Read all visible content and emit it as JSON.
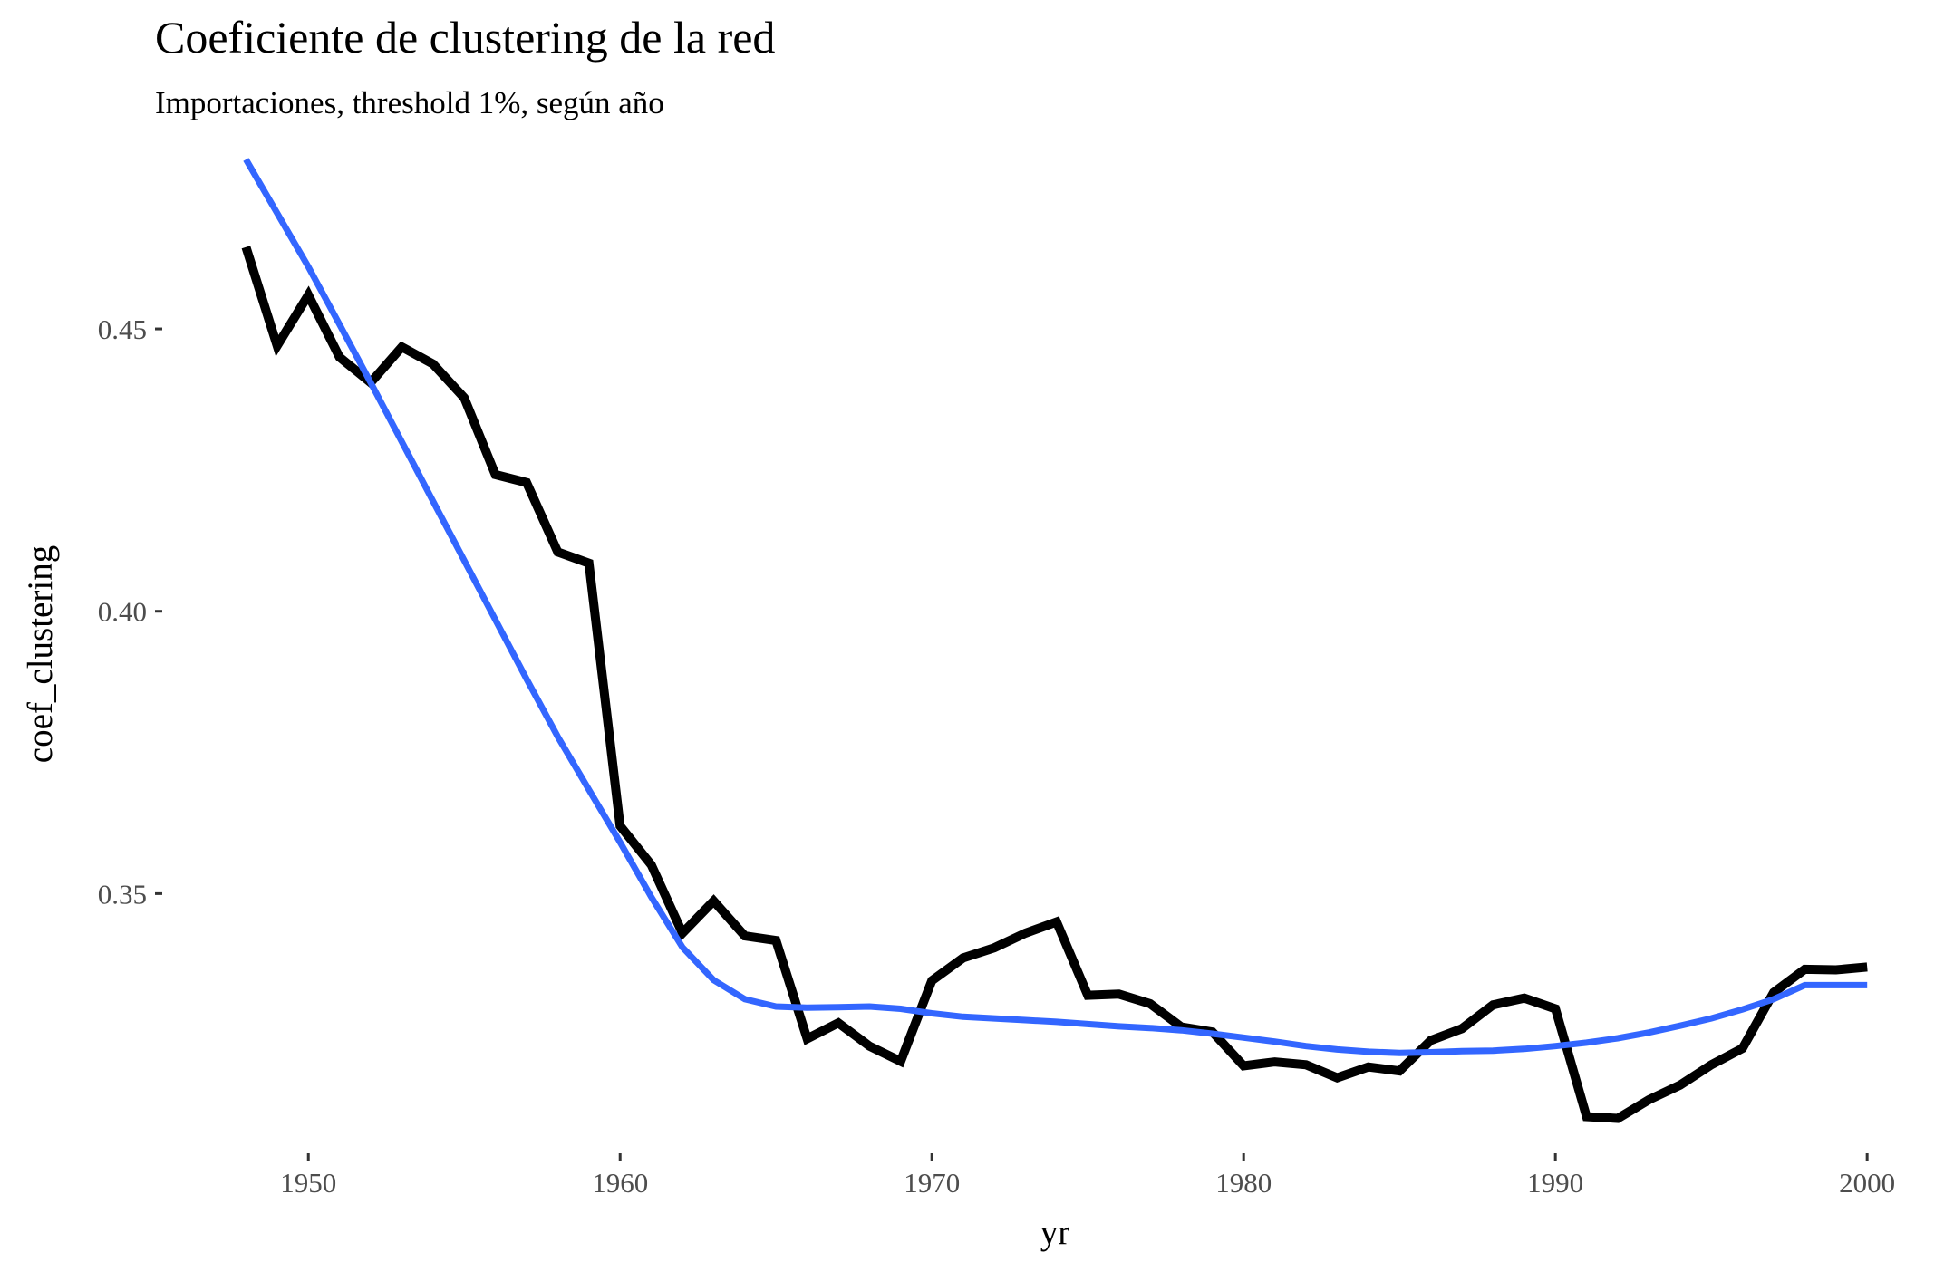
{
  "chart_data": {
    "type": "line",
    "title": "Coeficiente de clustering de la red",
    "subtitle": "Importaciones, threshold 1%, según año",
    "xlabel": "yr",
    "ylabel": "coef_clustering",
    "xlim": [
      1945.4,
      2001.1
    ],
    "ylim": [
      0.3045,
      0.4845
    ],
    "x_ticks": [
      1950,
      1960,
      1970,
      1980,
      1990,
      2000
    ],
    "y_ticks": [
      0.35,
      0.4,
      0.45
    ],
    "x_tick_labels": [
      "1950",
      "1960",
      "1970",
      "1980",
      "1990",
      "2000"
    ],
    "y_tick_labels": [
      "0.35",
      "0.40",
      "0.45"
    ],
    "grid": false,
    "legend": "none",
    "x": [
      1948,
      1949,
      1950,
      1951,
      1952,
      1953,
      1954,
      1955,
      1956,
      1957,
      1958,
      1959,
      1960,
      1961,
      1962,
      1963,
      1964,
      1965,
      1966,
      1967,
      1968,
      1969,
      1970,
      1971,
      1972,
      1973,
      1974,
      1975,
      1976,
      1977,
      1978,
      1979,
      1980,
      1981,
      1982,
      1983,
      1984,
      1985,
      1986,
      1987,
      1988,
      1989,
      1990,
      1991,
      1992,
      1993,
      1994,
      1995,
      1996,
      1997,
      1998,
      1999,
      2000
    ],
    "series": [
      {
        "color": "#000000",
        "values": [
          0.4645,
          0.447,
          0.456,
          0.445,
          0.4405,
          0.4468,
          0.4438,
          0.4378,
          0.4242,
          0.4228,
          0.4105,
          0.4085,
          0.362,
          0.3551,
          0.343,
          0.3487,
          0.3425,
          0.3417,
          0.3243,
          0.3271,
          0.323,
          0.3203,
          0.3346,
          0.3386,
          0.3404,
          0.343,
          0.345,
          0.332,
          0.3322,
          0.3305,
          0.3264,
          0.3255,
          0.3195,
          0.3202,
          0.3197,
          0.3174,
          0.3193,
          0.3186,
          0.324,
          0.3261,
          0.3303,
          0.3315,
          0.3296,
          0.3105,
          0.3102,
          0.3135,
          0.3161,
          0.3197,
          0.3226,
          0.3325,
          0.3366,
          0.3365,
          0.337
        ]
      },
      {
        "color": "#3366ff",
        "values": [
          0.48,
          0.4705,
          0.461,
          0.4508,
          0.4405,
          0.43,
          0.4195,
          0.409,
          0.3985,
          0.388,
          0.3778,
          0.3684,
          0.3591,
          0.3494,
          0.3405,
          0.3347,
          0.3313,
          0.33,
          0.3298,
          0.3299,
          0.33,
          0.3296,
          0.3288,
          0.3282,
          0.3279,
          0.3276,
          0.3273,
          0.3269,
          0.3265,
          0.3262,
          0.3258,
          0.3252,
          0.3245,
          0.3238,
          0.323,
          0.3224,
          0.322,
          0.3218,
          0.3219,
          0.3221,
          0.3222,
          0.3225,
          0.323,
          0.3236,
          0.3244,
          0.3254,
          0.3266,
          0.3279,
          0.3295,
          0.3313,
          0.3338,
          0.3338,
          0.3338
        ],
        "x": [
          1948,
          1949,
          1950,
          1951,
          1952,
          1953,
          1954,
          1955,
          1956,
          1957,
          1958,
          1959,
          1960,
          1961,
          1962,
          1963,
          1964,
          1965,
          1966,
          1967,
          1968,
          1969,
          1970,
          1971,
          1972,
          1973,
          1974,
          1975,
          1976,
          1977,
          1978,
          1979,
          1980,
          1981,
          1982,
          1983,
          1984,
          1985,
          1986,
          1987,
          1988,
          1989,
          1990,
          1991,
          1992,
          1993,
          1994,
          1995,
          1996,
          1997,
          1998,
          1999,
          2000
        ]
      }
    ]
  }
}
